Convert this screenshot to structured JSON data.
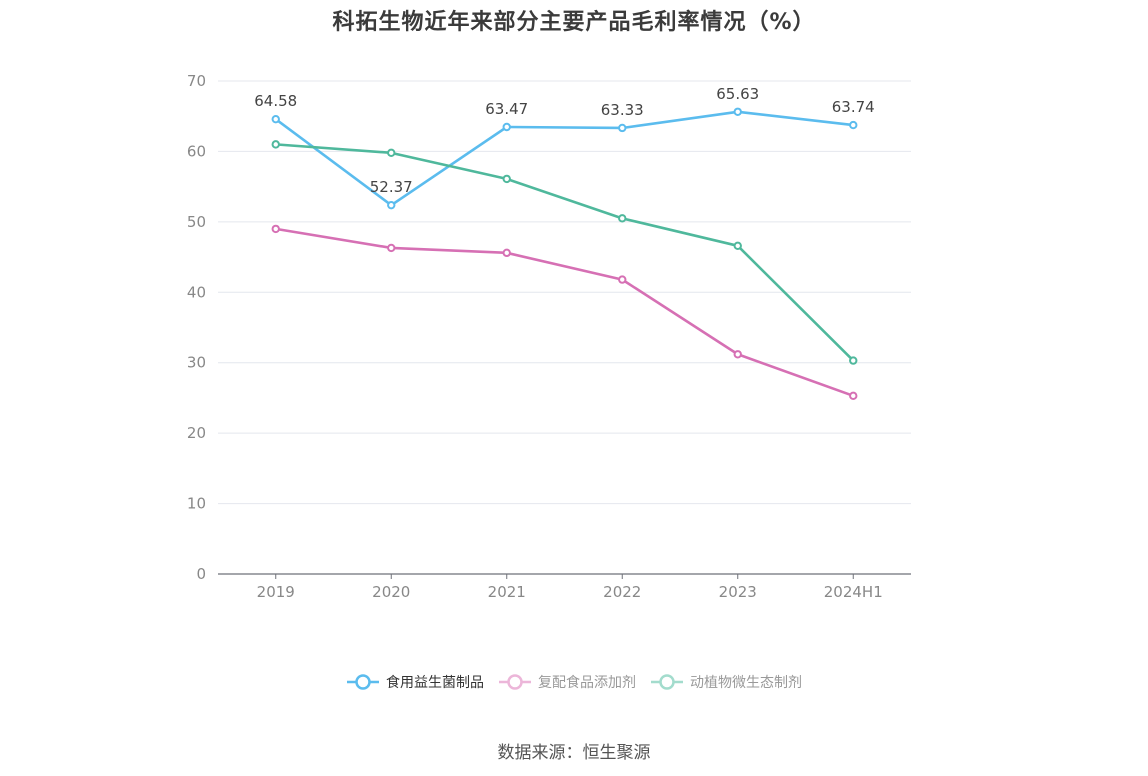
{
  "chart_data": {
    "type": "line",
    "title": "科拓生物近年来部分主要产品毛利率情况（%）",
    "categories": [
      "2019",
      "2020",
      "2021",
      "2022",
      "2023",
      "2024H1"
    ],
    "ylim": [
      0,
      70
    ],
    "yticks": [
      0,
      10,
      20,
      30,
      40,
      50,
      60,
      70
    ],
    "grid": true,
    "legend_position": "bottom",
    "series": [
      {
        "name": "食用益生菌制品",
        "color": "#5bbcee",
        "values": [
          64.58,
          52.37,
          63.47,
          63.33,
          65.63,
          63.74
        ],
        "show_labels": true,
        "legend_active": true
      },
      {
        "name": "复配食品添加剂",
        "color": "#d670b4",
        "values": [
          49.0,
          46.3,
          45.6,
          41.8,
          31.2,
          25.3
        ],
        "show_labels": false,
        "legend_active": false
      },
      {
        "name": "动植物微生态制剂",
        "color": "#4fb89c",
        "values": [
          61.0,
          59.8,
          56.1,
          50.5,
          46.6,
          30.3
        ],
        "show_labels": false,
        "legend_active": false
      }
    ],
    "source": "数据来源：恒生聚源"
  }
}
